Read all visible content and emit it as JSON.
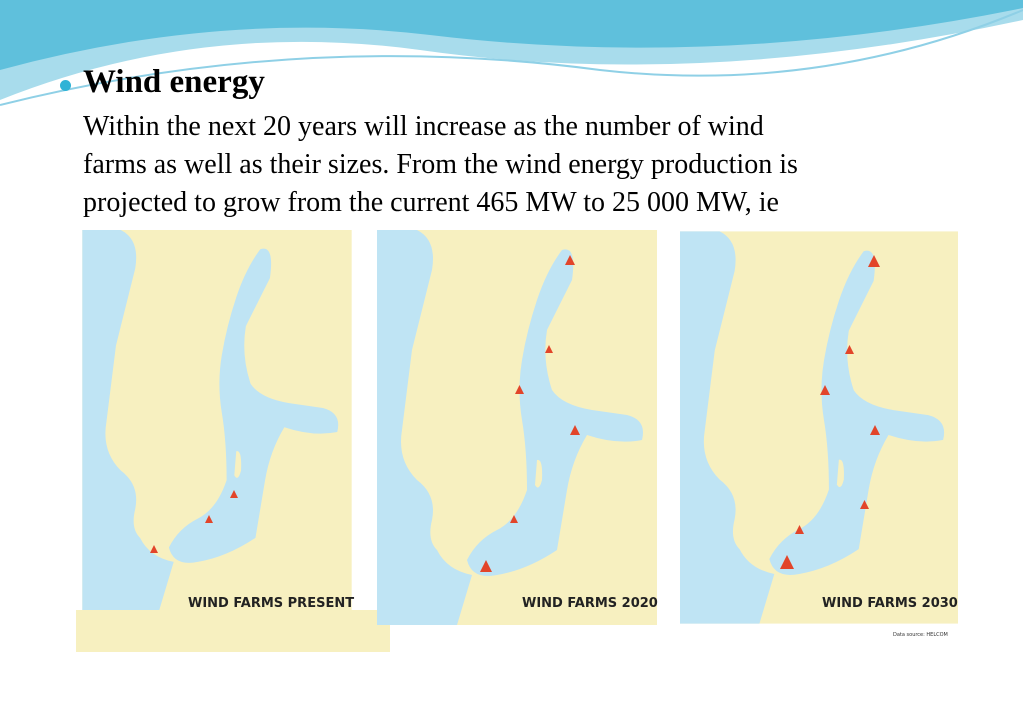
{
  "heading": "Wind energy",
  "body_lines": [
    "Within the next 20 years will increase as the number of wind",
    "farms as well as their sizes. From the wind energy production is",
    "projected to grow from the current 465 MW to 25 000 MW, ie"
  ],
  "maps": [
    {
      "caption": "WIND FARMS PRESENT"
    },
    {
      "caption": "WIND FARMS 2020"
    },
    {
      "caption": "WIND FARMS 2030"
    }
  ],
  "source": "Data source: HELCOM"
}
